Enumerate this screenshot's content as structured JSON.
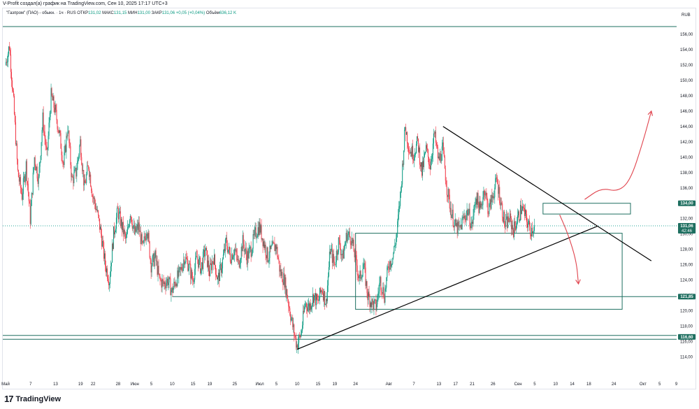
{
  "header": {
    "credit": "V-Profit создал(а) график на TradingView.com, Сен 10, 2025 17:17 UTC+3",
    "currency": "RUB"
  },
  "legend": {
    "symbol": "\"Газпром\" (ПАО) - обыкн. · 1ч · RUS",
    "open_label": "ОТКР",
    "open": "131,02",
    "high_label": "МАКС",
    "high": "131,15",
    "low_label": "МИН",
    "low": "131,00",
    "close_label": "ЗАКР",
    "close": "131,06",
    "change": "+0,05 (+0,04%)",
    "volume_label": "Объём",
    "volume": "636,12 K"
  },
  "footer": {
    "logo": "17",
    "brand": "TradingView"
  },
  "colors": {
    "up": "#089981",
    "down": "#f23645",
    "zone": "#1e6f60",
    "drawing": "#000000",
    "arrow": "#e0434d",
    "pane_border": "#e0e3eb"
  },
  "chart_data": {
    "type": "candlestick",
    "symbol": "Газпром",
    "interval": "1ч",
    "currency": "RUB",
    "ylim": [
      113,
      157
    ],
    "y_ticks": [
      "114,00",
      "116,00",
      "118,00",
      "120,00",
      "122,00",
      "124,00",
      "126,00",
      "128,00",
      "130,00",
      "132,00",
      "134,00",
      "136,00",
      "138,00",
      "140,00",
      "142,00",
      "144,00",
      "146,00",
      "148,00",
      "150,00",
      "152,00",
      "154,00",
      "156,00"
    ],
    "x_ticks": [
      {
        "label": "Май",
        "d": 0
      },
      {
        "label": "7",
        "d": 6
      },
      {
        "label": "13",
        "d": 12
      },
      {
        "label": "19",
        "d": 18
      },
      {
        "label": "22",
        "d": 21
      },
      {
        "label": "28",
        "d": 27
      },
      {
        "label": "Июн",
        "d": 31
      },
      {
        "label": "5",
        "d": 35
      },
      {
        "label": "10",
        "d": 40
      },
      {
        "label": "15",
        "d": 45
      },
      {
        "label": "19",
        "d": 49
      },
      {
        "label": "25",
        "d": 55
      },
      {
        "label": "Июл",
        "d": 61
      },
      {
        "label": "5",
        "d": 65
      },
      {
        "label": "10",
        "d": 70
      },
      {
        "label": "15",
        "d": 75
      },
      {
        "label": "19",
        "d": 79
      },
      {
        "label": "24",
        "d": 84
      },
      {
        "label": "Авг",
        "d": 92
      },
      {
        "label": "7",
        "d": 98
      },
      {
        "label": "13",
        "d": 104
      },
      {
        "label": "17",
        "d": 108
      },
      {
        "label": "21",
        "d": 112
      },
      {
        "label": "26",
        "d": 117
      },
      {
        "label": "Сен",
        "d": 123
      },
      {
        "label": "5",
        "d": 127
      },
      {
        "label": "10",
        "d": 132
      },
      {
        "label": "14",
        "d": 136
      },
      {
        "label": "18",
        "d": 140
      },
      {
        "label": "24",
        "d": 146
      },
      {
        "label": "Окт",
        "d": 153
      },
      {
        "label": "5",
        "d": 157
      },
      {
        "label": "9",
        "d": 161
      }
    ],
    "price_path": [
      [
        0,
        152
      ],
      [
        1,
        154.5
      ],
      [
        2,
        147
      ],
      [
        3,
        138
      ],
      [
        4,
        135
      ],
      [
        5,
        139
      ],
      [
        6,
        132
      ],
      [
        7,
        140
      ],
      [
        8,
        137
      ],
      [
        9,
        145
      ],
      [
        10,
        140
      ],
      [
        11,
        148
      ],
      [
        12,
        146
      ],
      [
        13,
        143
      ],
      [
        14,
        139
      ],
      [
        15,
        144
      ],
      [
        16,
        137
      ],
      [
        17,
        138
      ],
      [
        18,
        142
      ],
      [
        19,
        136
      ],
      [
        20,
        139
      ],
      [
        21,
        135
      ],
      [
        22,
        133
      ],
      [
        23,
        130
      ],
      [
        24,
        126
      ],
      [
        25,
        124
      ],
      [
        26,
        130
      ],
      [
        27,
        133
      ],
      [
        28,
        131
      ],
      [
        29,
        129
      ],
      [
        30,
        133
      ],
      [
        31,
        130
      ],
      [
        32,
        131
      ],
      [
        33,
        128
      ],
      [
        34,
        131
      ],
      [
        35,
        126
      ],
      [
        36,
        127
      ],
      [
        37,
        124
      ],
      [
        38,
        123.5
      ],
      [
        39,
        124
      ],
      [
        40,
        122.5
      ],
      [
        41,
        124
      ],
      [
        42,
        125
      ],
      [
        43,
        127
      ],
      [
        44,
        126
      ],
      [
        45,
        124
      ],
      [
        46,
        127
      ],
      [
        47,
        125.5
      ],
      [
        48,
        128
      ],
      [
        49,
        125
      ],
      [
        50,
        127
      ],
      [
        51,
        124
      ],
      [
        52,
        126
      ],
      [
        53,
        129
      ],
      [
        54,
        127
      ],
      [
        55,
        128
      ],
      [
        56,
        126
      ],
      [
        57,
        129
      ],
      [
        58,
        127
      ],
      [
        59,
        128
      ],
      [
        60,
        130
      ],
      [
        61,
        131
      ],
      [
        62,
        129
      ],
      [
        63,
        127
      ],
      [
        64,
        128
      ],
      [
        65,
        128.5
      ],
      [
        66,
        125
      ],
      [
        67,
        124
      ],
      [
        68,
        121
      ],
      [
        69,
        118
      ],
      [
        70,
        115.5
      ],
      [
        71,
        117
      ],
      [
        72,
        121
      ],
      [
        73,
        120.5
      ],
      [
        74,
        122
      ],
      [
        75,
        121
      ],
      [
        76,
        123
      ],
      [
        77,
        121
      ],
      [
        78,
        128
      ],
      [
        79,
        126
      ],
      [
        80,
        129
      ],
      [
        81,
        127
      ],
      [
        82,
        130
      ],
      [
        83,
        129.5
      ],
      [
        84,
        127
      ],
      [
        85,
        124
      ],
      [
        86,
        126
      ],
      [
        87,
        122
      ],
      [
        88,
        121
      ],
      [
        89,
        120.5
      ],
      [
        90,
        124
      ],
      [
        91,
        122
      ],
      [
        92,
        126
      ],
      [
        93,
        127
      ],
      [
        94,
        130
      ],
      [
        95,
        136
      ],
      [
        96,
        144
      ],
      [
        97,
        141
      ],
      [
        98,
        140.5
      ],
      [
        99,
        142
      ],
      [
        100,
        138
      ],
      [
        101,
        141
      ],
      [
        102,
        139
      ],
      [
        103,
        143
      ],
      [
        104,
        139.5
      ],
      [
        105,
        141
      ],
      [
        106,
        136
      ],
      [
        107,
        133
      ],
      [
        108,
        131
      ],
      [
        109,
        130.5
      ],
      [
        110,
        132
      ],
      [
        111,
        133
      ],
      [
        112,
        131
      ],
      [
        113,
        135
      ],
      [
        114,
        133
      ],
      [
        115,
        136
      ],
      [
        116,
        133
      ],
      [
        117,
        135
      ],
      [
        118,
        137
      ],
      [
        119,
        134
      ],
      [
        120,
        131
      ],
      [
        121,
        132
      ],
      [
        122,
        130.5
      ],
      [
        123,
        132
      ],
      [
        124,
        133.5
      ],
      [
        125,
        132
      ],
      [
        126,
        130.5
      ],
      [
        127,
        131.06
      ]
    ],
    "annotations": {
      "lines": [
        {
          "name": "support-116-upper",
          "y": 116.8
        },
        {
          "name": "support-116-lower",
          "y": 116.3
        },
        {
          "name": "price-dotted",
          "y": 131.06,
          "style": "dotted"
        },
        {
          "name": "level-121-85",
          "y": 121.85,
          "x_start": 40
        },
        {
          "name": "level-157",
          "y": 157
        }
      ],
      "rects": [
        {
          "name": "zone-large",
          "x0": 84,
          "x1": 148,
          "y0": 120.2,
          "y1": 130.1
        },
        {
          "name": "zone-small",
          "x0": 129,
          "x1": 150,
          "y0": 132.6,
          "y1": 134
        }
      ],
      "trendlines": [
        {
          "name": "descending-trendline",
          "x0": 105,
          "y0": 144,
          "x1": 155,
          "y1": 126.5
        },
        {
          "name": "ascending-trendline",
          "x0": 70,
          "y0": 115,
          "x1": 142,
          "y1": 131
        }
      ],
      "price_tags": [
        {
          "value": "134,00",
          "y": 134,
          "color": "#1e6f60"
        },
        {
          "value": "131,06",
          "sub": "42:46",
          "y": 131.06,
          "color": "#1e6f60"
        },
        {
          "value": "121,85",
          "y": 121.85,
          "color": "#1e6f60"
        },
        {
          "value": "116,60",
          "y": 116.6,
          "color": "#1e6f60"
        }
      ],
      "arrows": [
        {
          "name": "bullish-arrow",
          "color": "#e0434d",
          "path": [
            [
              139,
              134.5
            ],
            [
              143,
              136
            ],
            [
              147,
              135.5
            ],
            [
              150,
              137
            ],
            [
              153,
              142
            ],
            [
              155,
              146
            ]
          ]
        },
        {
          "name": "bearish-arrow",
          "color": "#e0434d",
          "path": [
            [
              133,
              132.5
            ],
            [
              135,
              130
            ],
            [
              137,
              126.5
            ],
            [
              137.5,
              123.5
            ]
          ]
        }
      ]
    }
  }
}
